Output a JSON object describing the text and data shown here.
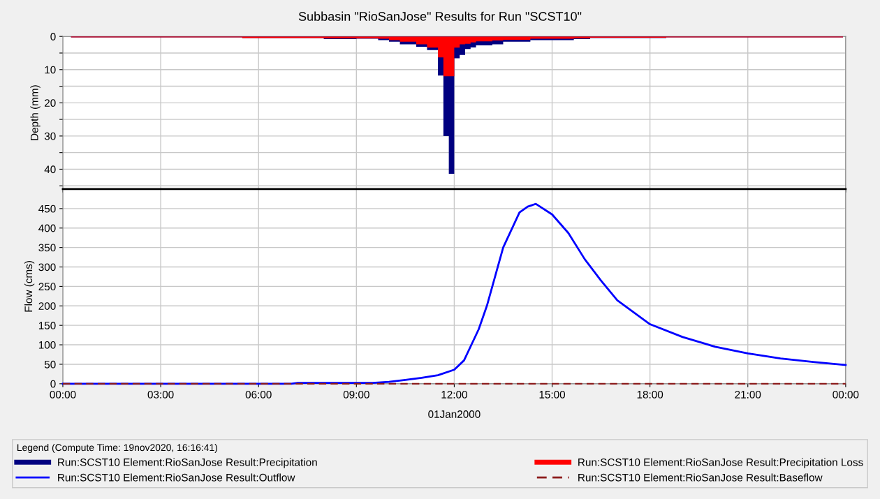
{
  "chart_data": [
    {
      "type": "area",
      "title": "Subbasin \"RioSanJose\" Results for Run \"SCST10\"",
      "ylabel": "Depth (mm)",
      "xlim": [
        "2000-01-01T00:00",
        "2000-01-02T00:00"
      ],
      "xticks": [
        {
          "value": "2000-01-01T00:00",
          "label": null
        },
        {
          "value": "2000-01-01T03:00",
          "label": null
        },
        {
          "value": "2000-01-01T06:00",
          "label": null
        },
        {
          "value": "2000-01-01T09:00",
          "label": null
        },
        {
          "value": "2000-01-01T12:00",
          "label": null
        },
        {
          "value": "2000-01-01T15:00",
          "label": null
        },
        {
          "value": "2000-01-01T18:00",
          "label": null
        },
        {
          "value": "2000-01-01T21:00",
          "label": null
        },
        {
          "value": "2000-01-02T00:00",
          "label": null
        }
      ],
      "ylim": [
        46,
        0
      ],
      "yticks": [
        0,
        {
          "value": 5,
          "label": null
        },
        10,
        {
          "value": 15,
          "label": null
        },
        20,
        {
          "value": 25,
          "label": null
        },
        30,
        {
          "value": 35,
          "label": null
        },
        40,
        {
          "value": 45,
          "label": null
        }
      ],
      "tick_labels": "y",
      "grid": true,
      "legend": "bottom",
      "x": [
        "2000-01-01T00:15",
        "2000-01-01T00:25",
        "2000-01-01T00:35",
        "2000-01-01T00:45",
        "2000-01-01T00:55",
        "2000-01-01T01:05",
        "2000-01-01T01:15",
        "2000-01-01T01:25",
        "2000-01-01T01:35",
        "2000-01-01T01:45",
        "2000-01-01T01:55",
        "2000-01-01T02:05",
        "2000-01-01T02:15",
        "2000-01-01T02:25",
        "2000-01-01T02:35",
        "2000-01-01T02:45",
        "2000-01-01T02:55",
        "2000-01-01T03:05",
        "2000-01-01T03:15",
        "2000-01-01T03:25",
        "2000-01-01T03:35",
        "2000-01-01T03:45",
        "2000-01-01T03:55",
        "2000-01-01T04:05",
        "2000-01-01T04:15",
        "2000-01-01T04:25",
        "2000-01-01T04:35",
        "2000-01-01T04:45",
        "2000-01-01T04:55",
        "2000-01-01T05:05",
        "2000-01-01T05:15",
        "2000-01-01T05:25",
        "2000-01-01T05:35",
        "2000-01-01T05:45",
        "2000-01-01T05:55",
        "2000-01-01T06:05",
        "2000-01-01T06:15",
        "2000-01-01T06:25",
        "2000-01-01T06:35",
        "2000-01-01T06:45",
        "2000-01-01T06:55",
        "2000-01-01T07:05",
        "2000-01-01T07:15",
        "2000-01-01T07:25",
        "2000-01-01T07:35",
        "2000-01-01T07:45",
        "2000-01-01T07:55",
        "2000-01-01T08:05",
        "2000-01-01T08:15",
        "2000-01-01T08:25",
        "2000-01-01T08:35",
        "2000-01-01T08:45",
        "2000-01-01T08:55",
        "2000-01-01T09:05",
        "2000-01-01T09:15",
        "2000-01-01T09:25",
        "2000-01-01T09:35",
        "2000-01-01T09:45",
        "2000-01-01T09:55",
        "2000-01-01T10:05",
        "2000-01-01T10:15",
        "2000-01-01T10:25",
        "2000-01-01T10:35",
        "2000-01-01T10:45",
        "2000-01-01T10:55",
        "2000-01-01T11:05",
        "2000-01-01T11:15",
        "2000-01-01T11:25",
        "2000-01-01T11:35",
        "2000-01-01T11:45",
        "2000-01-01T11:55",
        "2000-01-01T12:05",
        "2000-01-01T12:15",
        "2000-01-01T12:25",
        "2000-01-01T12:35",
        "2000-01-01T12:45",
        "2000-01-01T12:55",
        "2000-01-01T13:05",
        "2000-01-01T13:15",
        "2000-01-01T13:25",
        "2000-01-01T13:35",
        "2000-01-01T13:45",
        "2000-01-01T13:55",
        "2000-01-01T14:05",
        "2000-01-01T14:15",
        "2000-01-01T14:25",
        "2000-01-01T14:35",
        "2000-01-01T14:45",
        "2000-01-01T14:55",
        "2000-01-01T15:05",
        "2000-01-01T15:15",
        "2000-01-01T15:25",
        "2000-01-01T15:35",
        "2000-01-01T15:45",
        "2000-01-01T15:55",
        "2000-01-01T16:05",
        "2000-01-01T16:15",
        "2000-01-01T16:25",
        "2000-01-01T16:35",
        "2000-01-01T16:45",
        "2000-01-01T16:55",
        "2000-01-01T17:05",
        "2000-01-01T17:15",
        "2000-01-01T17:25",
        "2000-01-01T17:35",
        "2000-01-01T17:45",
        "2000-01-01T17:55",
        "2000-01-01T18:05",
        "2000-01-01T18:15",
        "2000-01-01T18:25",
        "2000-01-01T18:35",
        "2000-01-01T18:45",
        "2000-01-01T18:55",
        "2000-01-01T19:05",
        "2000-01-01T19:15",
        "2000-01-01T19:25",
        "2000-01-01T19:35",
        "2000-01-01T19:45",
        "2000-01-01T19:55",
        "2000-01-01T20:05",
        "2000-01-01T20:15",
        "2000-01-01T20:25",
        "2000-01-01T20:35",
        "2000-01-01T20:45",
        "2000-01-01T20:55",
        "2000-01-01T21:05",
        "2000-01-01T21:15",
        "2000-01-01T21:25",
        "2000-01-01T21:35",
        "2000-01-01T21:45",
        "2000-01-01T21:55",
        "2000-01-01T22:05",
        "2000-01-01T22:15",
        "2000-01-01T22:25",
        "2000-01-01T22:35",
        "2000-01-01T22:45",
        "2000-01-01T22:55",
        "2000-01-01T23:05",
        "2000-01-01T23:15",
        "2000-01-01T23:25",
        "2000-01-01T23:35",
        "2000-01-01T23:45",
        "2000-01-01T23:55"
      ],
      "series": [
        {
          "name": "Run:SCST10 Element:RioSanJose Result:Precipitation",
          "color": "#000080",
          "values": [
            0.3,
            0.3,
            0.3,
            0.3,
            0.3,
            0.3,
            0.3,
            0.3,
            0.3,
            0.3,
            0.3,
            0.3,
            0.3,
            0.3,
            0.3,
            0.3,
            0.3,
            0.3,
            0.3,
            0.3,
            0.3,
            0.3,
            0.3,
            0.3,
            0.3,
            0.3,
            0.3,
            0.3,
            0.3,
            0.3,
            0.3,
            0.3,
            0.5,
            0.5,
            0.5,
            0.5,
            0.5,
            0.5,
            0.5,
            0.5,
            0.5,
            0.5,
            0.5,
            0.5,
            0.5,
            0.5,
            0.5,
            0.8,
            0.8,
            0.8,
            0.8,
            0.8,
            0.8,
            0.7,
            0.7,
            0.7,
            0.7,
            1.1,
            1.1,
            1.6,
            1.6,
            2.4,
            2.4,
            2.4,
            3.1,
            3.1,
            4.1,
            4.1,
            11.8,
            30,
            41.4,
            6.6,
            5.6,
            3.8,
            3.3,
            2.7,
            2.7,
            2.7,
            2.4,
            2.4,
            1.6,
            1.6,
            1.6,
            1.6,
            1.6,
            1.1,
            1.1,
            1.1,
            1.1,
            1.1,
            1.1,
            1.1,
            1.1,
            0.8,
            0.8,
            0.8,
            0.5,
            0.5,
            0.5,
            0.5,
            0.5,
            0.5,
            0.5,
            0.5,
            0.5,
            0.5,
            0.5,
            0.5,
            0.5,
            0.5,
            0.3,
            0.3,
            0.3,
            0.3,
            0.3,
            0.3,
            0.3,
            0.3,
            0.3,
            0.3,
            0.3,
            0.3,
            0.3,
            0.3,
            0.3,
            0.3,
            0.3,
            0.3,
            0.3,
            0.3,
            0.3,
            0.3,
            0.3,
            0.3,
            0.3,
            0.3,
            0.3,
            0.3,
            0.3,
            0.3,
            0.3,
            0.3,
            0.3
          ]
        },
        {
          "name": "Run:SCST10 Element:RioSanJose Result:Precipitation Loss",
          "color": "#ff0000",
          "values": [
            0.3,
            0.3,
            0.3,
            0.3,
            0.3,
            0.3,
            0.3,
            0.3,
            0.3,
            0.3,
            0.3,
            0.3,
            0.3,
            0.3,
            0.3,
            0.3,
            0.3,
            0.3,
            0.3,
            0.3,
            0.3,
            0.3,
            0.3,
            0.3,
            0.3,
            0.3,
            0.3,
            0.3,
            0.3,
            0.3,
            0.3,
            0.3,
            0.5,
            0.5,
            0.5,
            0.5,
            0.5,
            0.5,
            0.5,
            0.5,
            0.5,
            0.5,
            0.5,
            0.5,
            0.5,
            0.5,
            0.5,
            0.6,
            0.6,
            0.6,
            0.6,
            0.6,
            0.6,
            0.6,
            0.6,
            0.6,
            0.6,
            0.7,
            0.7,
            1.1,
            1.1,
            1.6,
            1.6,
            1.6,
            2.4,
            2.4,
            3.4,
            3.4,
            6.3,
            12,
            12,
            3.4,
            2.4,
            2.2,
            1.8,
            1.5,
            1.5,
            1.5,
            1.2,
            1.2,
            1.0,
            1.0,
            1.0,
            1.0,
            1.0,
            0.7,
            0.7,
            0.7,
            0.7,
            0.7,
            0.7,
            0.7,
            0.7,
            0.6,
            0.6,
            0.6,
            0.4,
            0.4,
            0.4,
            0.4,
            0.4,
            0.4,
            0.4,
            0.4,
            0.4,
            0.4,
            0.4,
            0.4,
            0.4,
            0.4,
            0.3,
            0.3,
            0.3,
            0.3,
            0.3,
            0.3,
            0.3,
            0.3,
            0.3,
            0.3,
            0.3,
            0.3,
            0.3,
            0.3,
            0.3,
            0.3,
            0.3,
            0.3,
            0.3,
            0.3,
            0.3,
            0.3,
            0.3,
            0.3,
            0.3,
            0.3,
            0.3,
            0.3,
            0.3,
            0.3,
            0.3,
            0.3,
            0.3
          ]
        }
      ]
    },
    {
      "type": "line",
      "ylabel": "Flow (cms)",
      "xlabel": "01Jan2000",
      "xlim": [
        "2000-01-01T00:00",
        "2000-01-02T00:00"
      ],
      "xticks": [
        {
          "value": "2000-01-01T00:00",
          "label": "00:00"
        },
        {
          "value": "2000-01-01T03:00",
          "label": "03:00"
        },
        {
          "value": "2000-01-01T06:00",
          "label": "06:00"
        },
        {
          "value": "2000-01-01T09:00",
          "label": "09:00"
        },
        {
          "value": "2000-01-01T12:00",
          "label": "12:00"
        },
        {
          "value": "2000-01-01T15:00",
          "label": "15:00"
        },
        {
          "value": "2000-01-01T18:00",
          "label": "18:00"
        },
        {
          "value": "2000-01-01T21:00",
          "label": "21:00"
        },
        {
          "value": "2000-01-02T00:00",
          "label": "00:00"
        }
      ],
      "ylim": [
        0,
        500
      ],
      "yticks": [
        0,
        50,
        100,
        150,
        200,
        250,
        300,
        350,
        400,
        450
      ],
      "grid": true,
      "legend": "bottom",
      "legend_title": "Legend (Compute Time: 19nov2020, 16:16:41)",
      "marker": "none",
      "series": [
        {
          "name": "Run:SCST10 Element:RioSanJose Result:Outflow",
          "color": "#0000ff",
          "line_style": "solid",
          "x": [
            "2000-01-01T00:00",
            "2000-01-01T07:00",
            "2000-01-01T07:12",
            "2000-01-01T09:30",
            "2000-01-01T10:00",
            "2000-01-01T10:30",
            "2000-01-01T11:00",
            "2000-01-01T11:30",
            "2000-01-01T12:00",
            "2000-01-01T12:18",
            "2000-01-01T12:45",
            "2000-01-01T13:00",
            "2000-01-01T13:30",
            "2000-01-01T14:00",
            "2000-01-01T14:15",
            "2000-01-01T14:30",
            "2000-01-01T15:00",
            "2000-01-01T15:30",
            "2000-01-01T16:00",
            "2000-01-01T16:30",
            "2000-01-01T17:00",
            "2000-01-01T18:00",
            "2000-01-01T19:00",
            "2000-01-01T20:00",
            "2000-01-01T21:00",
            "2000-01-01T22:00",
            "2000-01-01T23:00",
            "2000-01-02T00:00"
          ],
          "values": [
            0,
            0,
            2,
            2,
            5,
            10,
            15,
            22,
            36,
            60,
            140,
            200,
            350,
            440,
            455,
            462,
            435,
            387,
            320,
            265,
            214,
            153,
            120,
            95,
            78,
            65,
            56,
            48
          ]
        },
        {
          "name": "Run:SCST10 Element:RioSanJose Result:Baseflow",
          "color": "#8b1a1a",
          "line_style": "dashed",
          "x": [
            "2000-01-01T00:00",
            "2000-01-02T00:00"
          ],
          "values": [
            0,
            0
          ]
        }
      ]
    }
  ]
}
